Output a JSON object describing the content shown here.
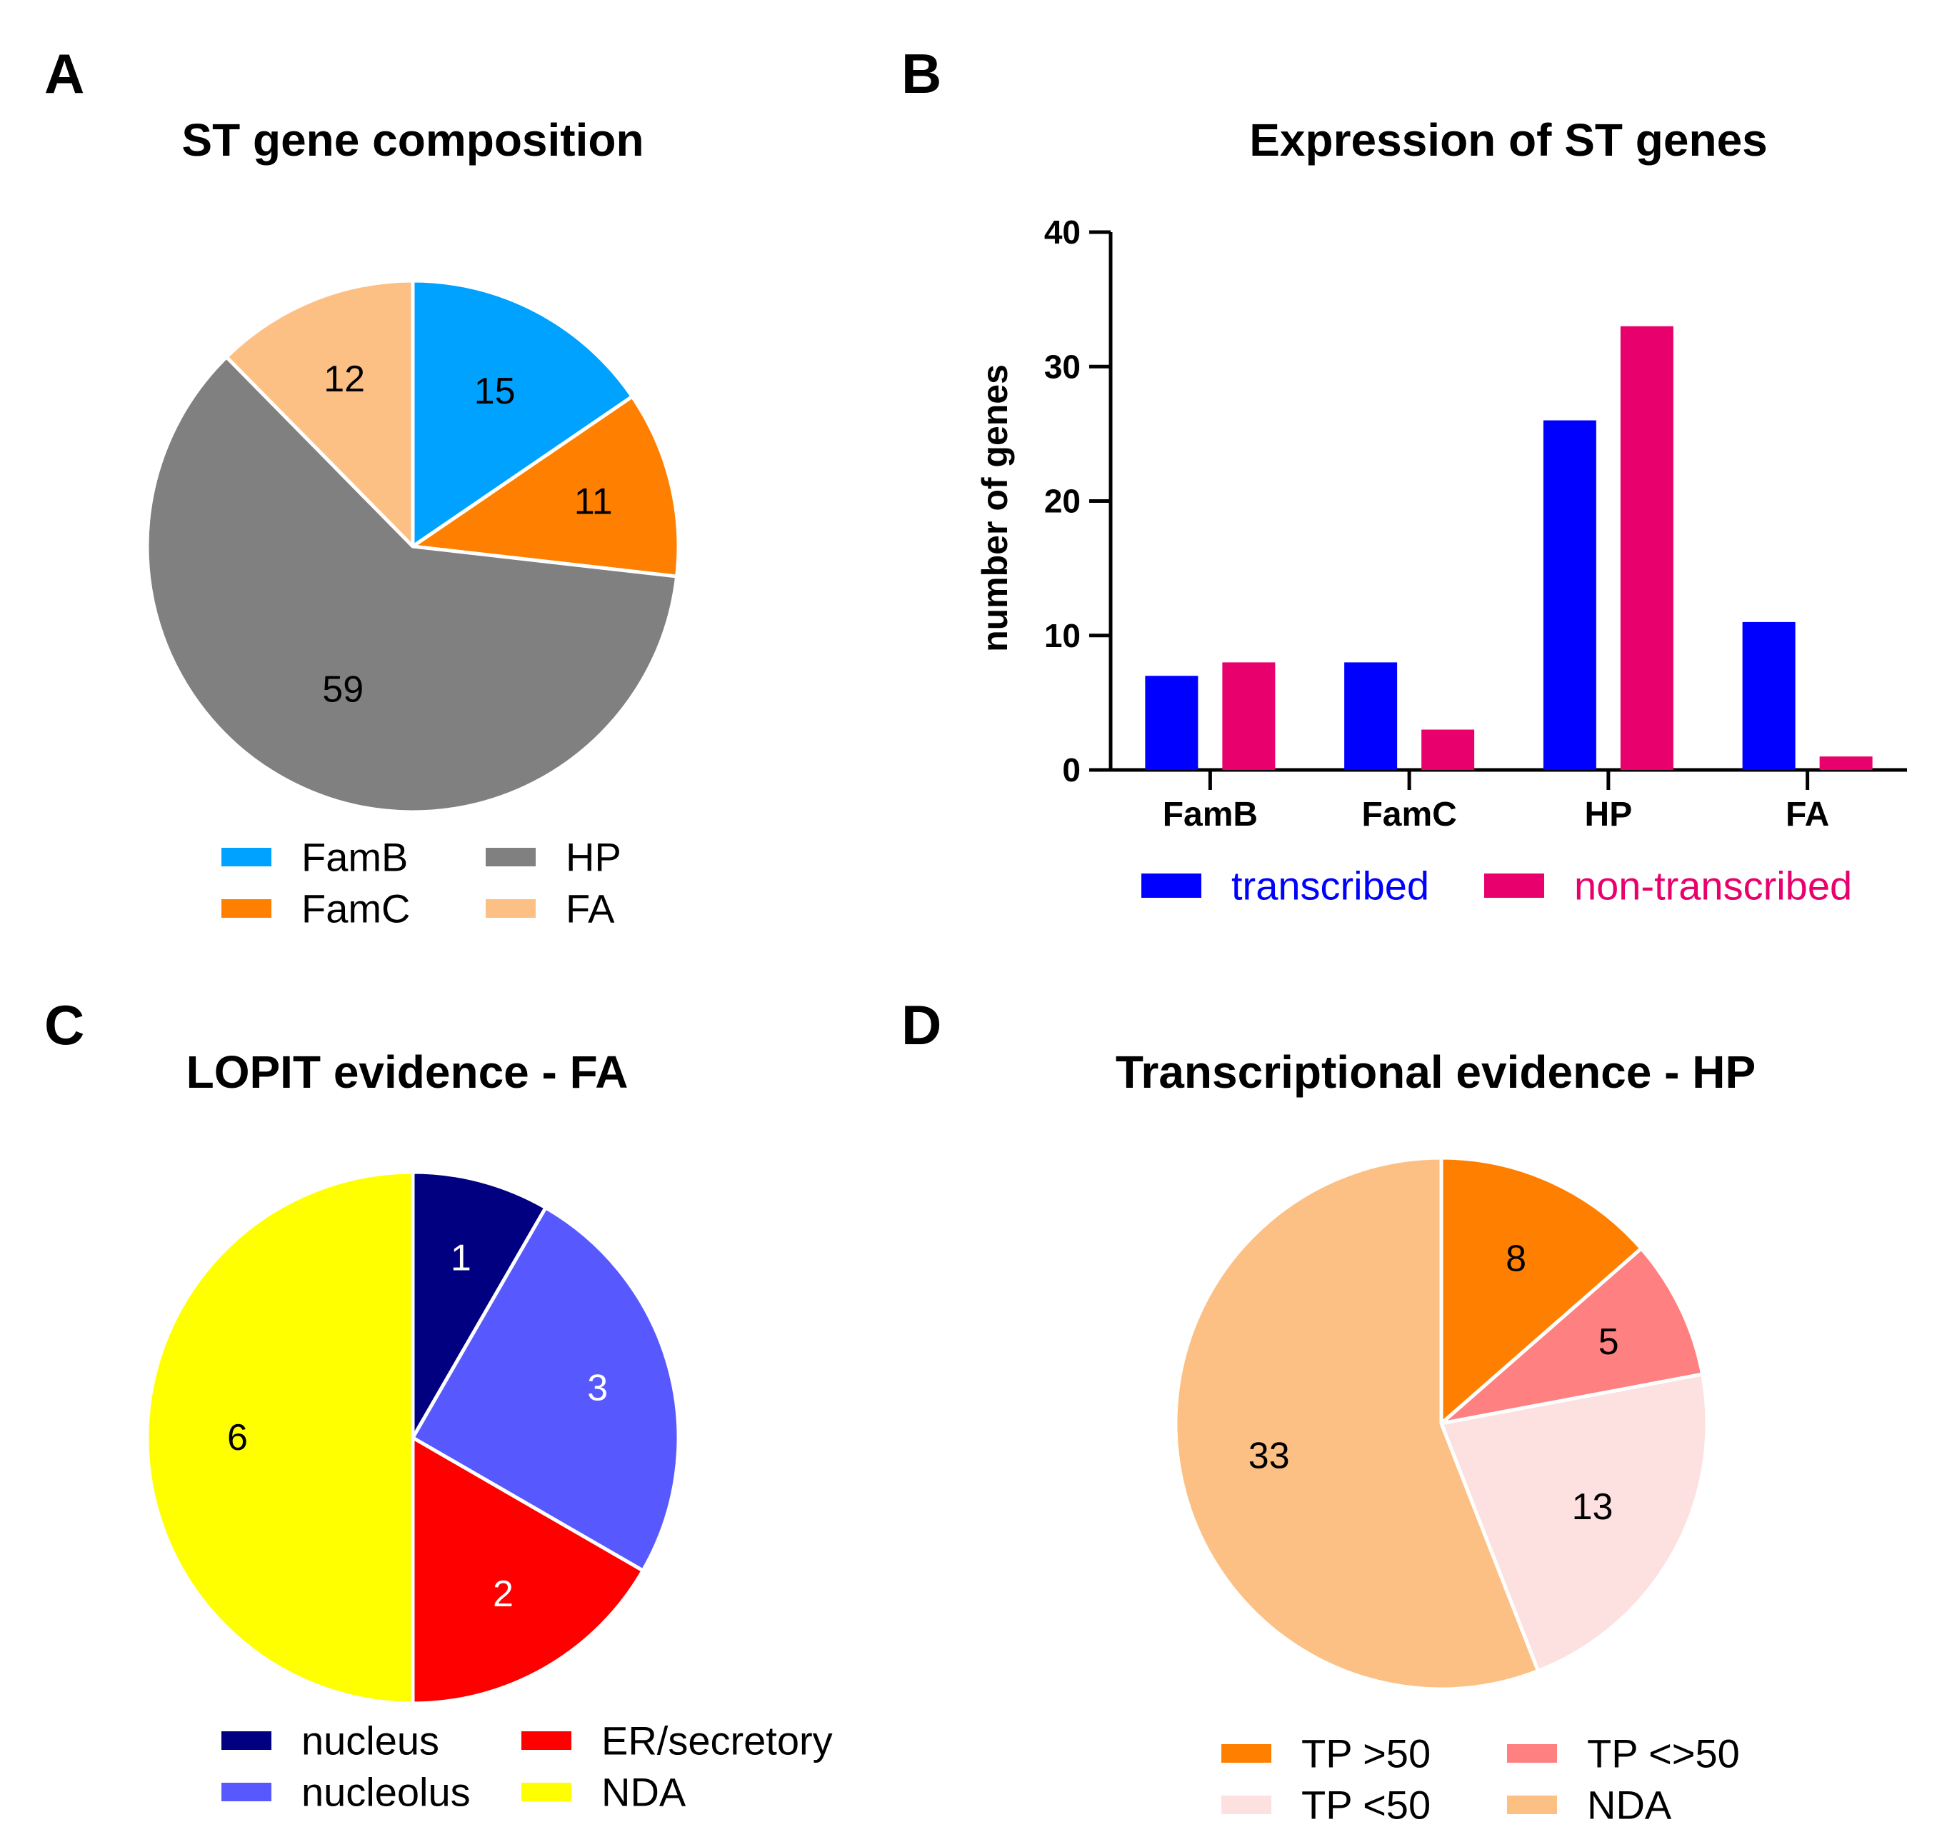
{
  "panels": {
    "A": "A",
    "B": "B",
    "C": "C",
    "D": "D"
  },
  "chart_data": [
    {
      "id": "A",
      "type": "pie",
      "title": "ST gene composition",
      "labels": [
        "FamB",
        "FamC",
        "HP",
        "FA"
      ],
      "values": [
        15,
        11,
        59,
        12
      ],
      "colors": [
        "#00a2ff",
        "#ff8000",
        "#808080",
        "#fdc084"
      ],
      "label_colors": [
        "#000000",
        "#000000",
        "#000000",
        "#000000"
      ],
      "slice_order": "clockwise-from-top",
      "legend": {
        "columns": [
          [
            "FamB",
            "FamC"
          ],
          [
            "HP",
            "FA"
          ]
        ]
      }
    },
    {
      "id": "B",
      "type": "bar",
      "title": "Expression of ST genes",
      "categories": [
        "FamB",
        "FamC",
        "HP",
        "FA"
      ],
      "series": [
        {
          "name": "transcribed",
          "values": [
            7,
            8,
            26,
            11
          ],
          "color": "#0000ff"
        },
        {
          "name": "non-transcribed",
          "values": [
            8,
            3,
            33,
            1
          ],
          "color": "#e8006c"
        }
      ],
      "ylabel": "number of genes",
      "xlabel": "",
      "ylim": [
        0,
        40
      ],
      "yticks": [
        0,
        10,
        20,
        30,
        40
      ],
      "grid": false,
      "legend_position": "bottom"
    },
    {
      "id": "C",
      "type": "pie",
      "title": "LOPIT evidence - FA",
      "labels": [
        "nucleus",
        "nucleolus",
        "ER/secretory",
        "NDA"
      ],
      "values": [
        1,
        3,
        2,
        6
      ],
      "colors": [
        "#000080",
        "#5858ff",
        "#ff0000",
        "#ffff00"
      ],
      "label_colors": [
        "#ffffff",
        "#ffffff",
        "#ffffff",
        "#000000"
      ],
      "slice_order": "clockwise-from-top",
      "legend": {
        "columns": [
          [
            "nucleus",
            "nucleolus"
          ],
          [
            "ER/secretory",
            "NDA"
          ]
        ]
      }
    },
    {
      "id": "D",
      "type": "pie",
      "title": "Transcriptional evidence - HP",
      "labels": [
        "TP >50",
        "TP <>50",
        "TP <50",
        "NDA"
      ],
      "values": [
        8,
        5,
        13,
        33
      ],
      "colors": [
        "#ff8000",
        "#ff8080",
        "#fde0e0",
        "#fdc084"
      ],
      "label_colors": [
        "#000000",
        "#000000",
        "#000000",
        "#000000"
      ],
      "slice_order": "clockwise-from-top",
      "legend": {
        "columns": [
          [
            "TP >50",
            "TP <50"
          ],
          [
            "TP <>50",
            "NDA"
          ]
        ]
      }
    }
  ]
}
